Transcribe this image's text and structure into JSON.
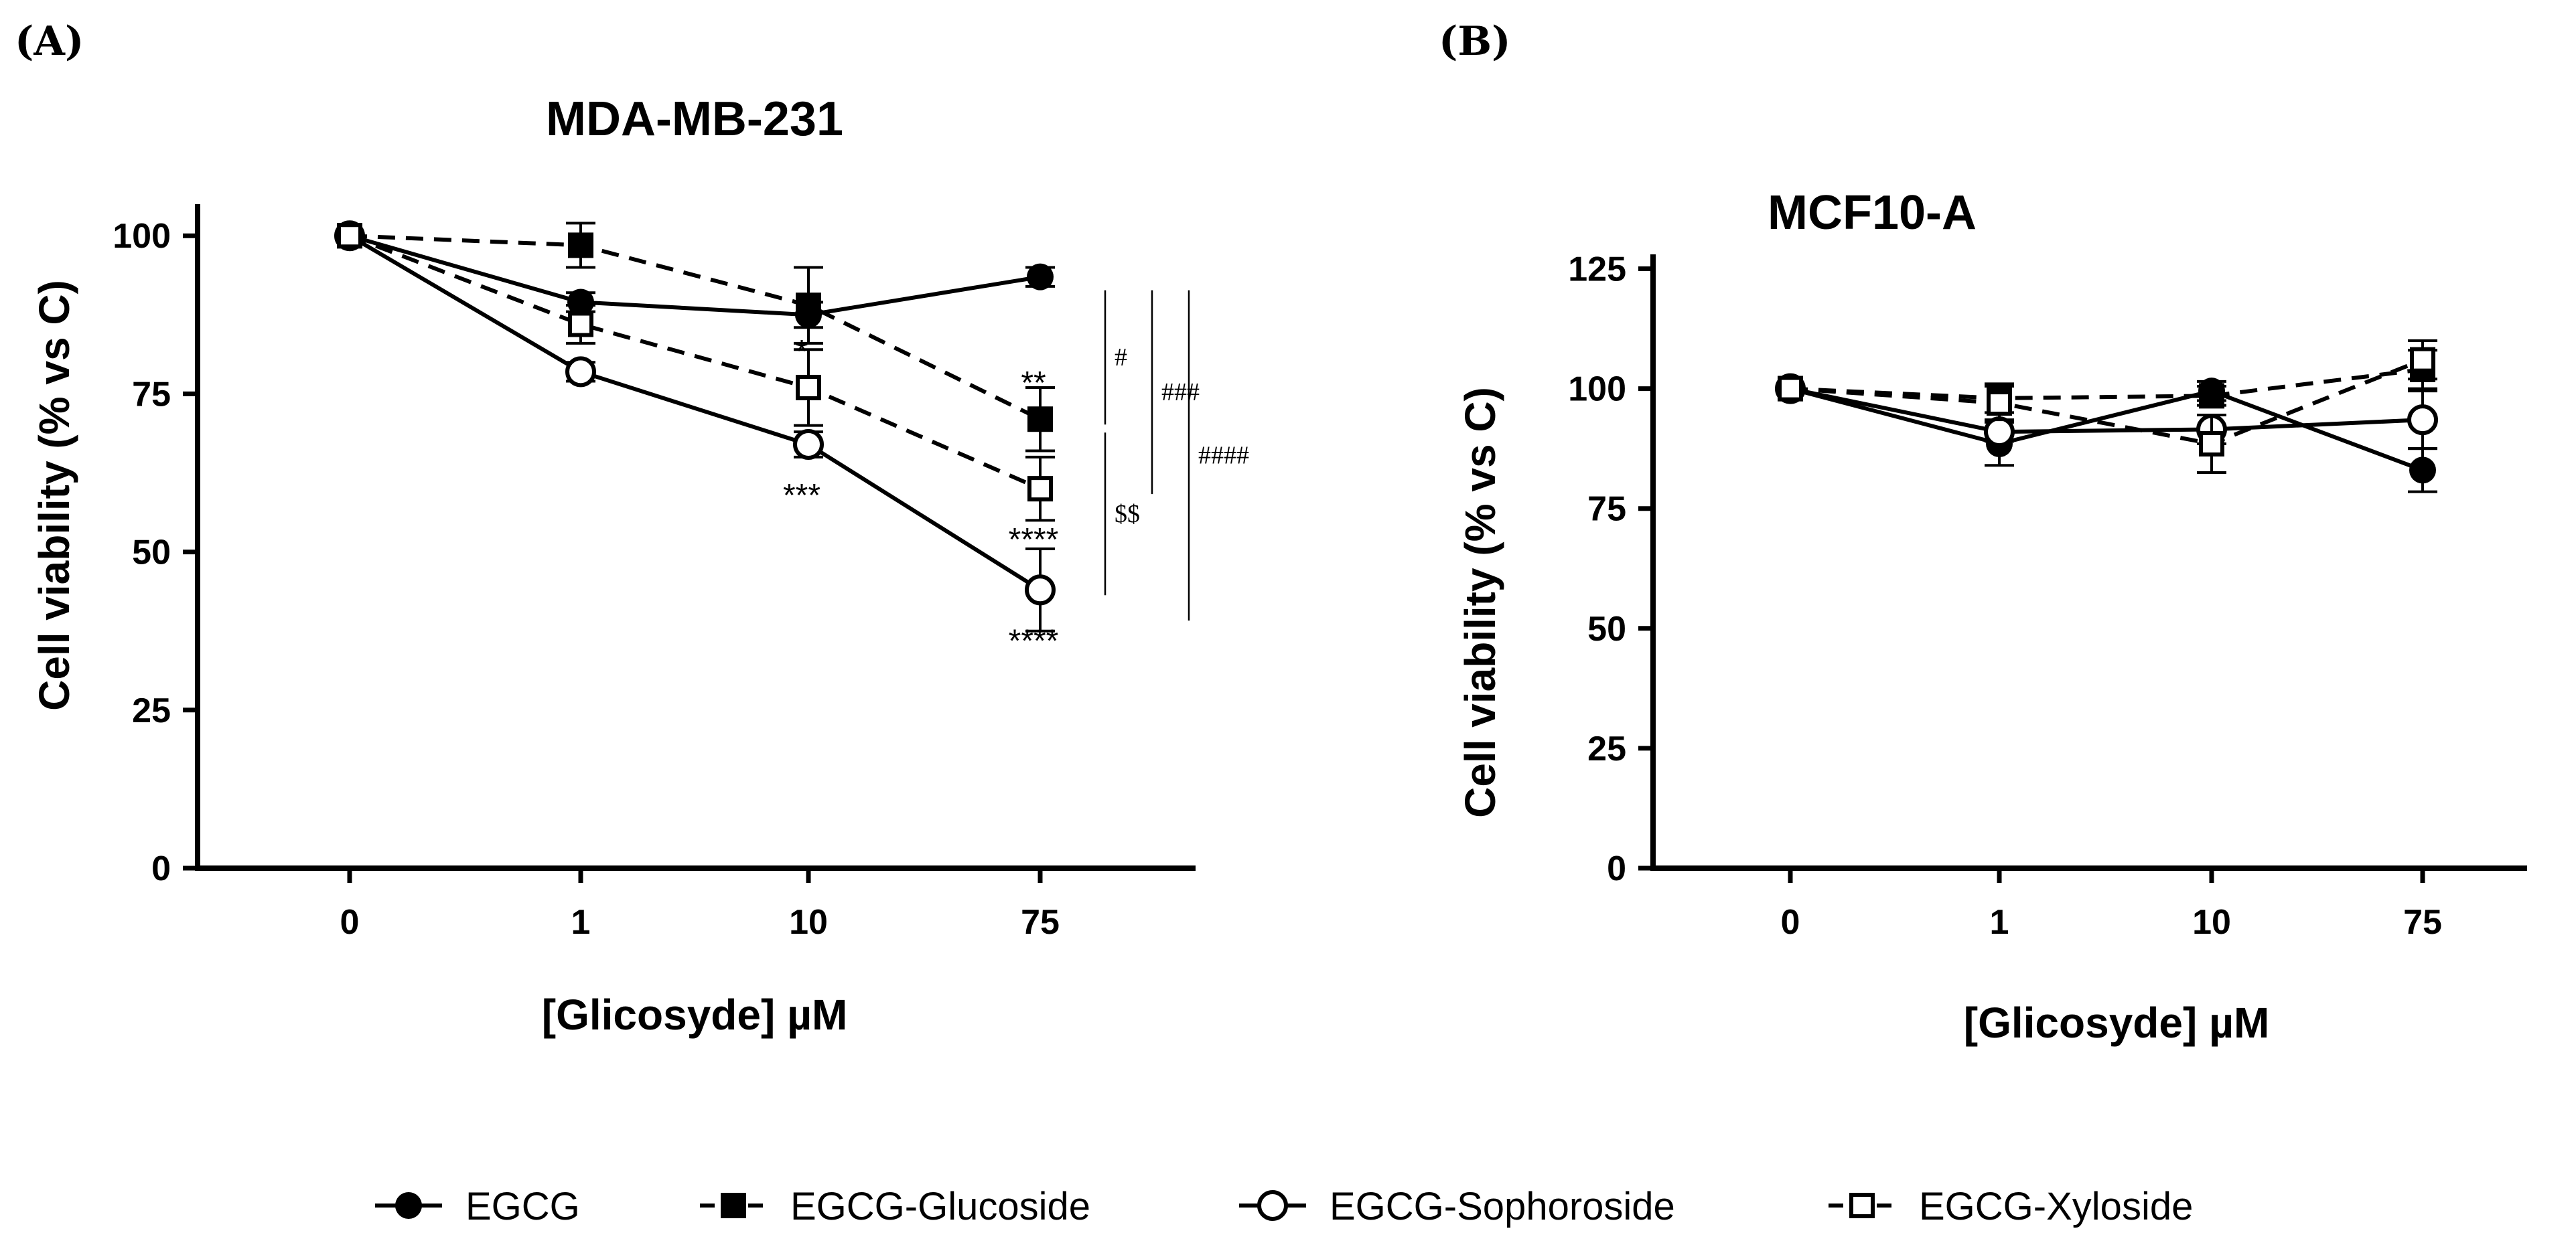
{
  "panels": {
    "a_label": "(A)",
    "b_label": "(B)"
  },
  "legend": [
    {
      "name": "EGCG",
      "marker": "filled-circle",
      "line": "solid"
    },
    {
      "name": "EGCG-Glucoside",
      "marker": "filled-square",
      "line": "dashed"
    },
    {
      "name": "EGCG-Sophoroside",
      "marker": "open-circle",
      "line": "solid"
    },
    {
      "name": "EGCG-Xyloside",
      "marker": "open-square",
      "line": "dashed"
    }
  ],
  "chart_data": [
    {
      "type": "line",
      "title": "MDA-MB-231",
      "xlabel": "[Glicosyde] µM",
      "ylabel": "Cell viability (% vs C)",
      "categories": [
        "0",
        "1",
        "10",
        "75"
      ],
      "ylim": [
        0,
        105
      ],
      "yticks": [
        0,
        25,
        50,
        75,
        100
      ],
      "series": [
        {
          "name": "EGCG",
          "values": [
            100,
            89.5,
            87.5,
            93.5
          ],
          "errors": [
            0,
            1.5,
            2,
            1.5
          ]
        },
        {
          "name": "EGCG-Glucoside",
          "values": [
            100,
            98.5,
            89,
            71
          ],
          "errors": [
            0,
            3.5,
            6,
            5
          ]
        },
        {
          "name": "EGCG-Sophoroside",
          "values": [
            100,
            78.5,
            67,
            44
          ],
          "errors": [
            0,
            1.5,
            2,
            6.5
          ]
        },
        {
          "name": "EGCG-Xyloside",
          "values": [
            100,
            86,
            76,
            60
          ],
          "errors": [
            0,
            3,
            6,
            5
          ]
        }
      ],
      "annotations": [
        {
          "category": "10",
          "series": "EGCG-Xyloside",
          "text": "*",
          "position": "above"
        },
        {
          "category": "10",
          "series": "EGCG-Sophoroside",
          "text": "***",
          "position": "below"
        },
        {
          "category": "75",
          "series": "EGCG-Glucoside",
          "text": "**",
          "position": "above"
        },
        {
          "category": "75",
          "series": "EGCG-Xyloside",
          "text": "****",
          "position": "below"
        },
        {
          "category": "75",
          "series": "EGCG-Sophoroside",
          "text": "****",
          "position": "below"
        }
      ],
      "brackets": [
        {
          "text": "#",
          "from": 93.5,
          "to": 71
        },
        {
          "text": "###",
          "from": 93.5,
          "to": 60
        },
        {
          "text": "$$",
          "from": 71,
          "to": 44
        },
        {
          "text": "####",
          "from": 93.5,
          "to": 40
        }
      ]
    },
    {
      "type": "line",
      "title": "MCF10-A",
      "xlabel": "[Glicosyde] µM",
      "ylabel": "Cell viability (% vs C)",
      "categories": [
        "0",
        "1",
        "10",
        "75"
      ],
      "ylim": [
        0,
        128
      ],
      "yticks": [
        0,
        25,
        50,
        75,
        100,
        125
      ],
      "series": [
        {
          "name": "EGCG",
          "values": [
            100,
            88.5,
            99.5,
            83
          ],
          "errors": [
            0,
            4.5,
            2,
            4.5
          ]
        },
        {
          "name": "EGCG-Glucoside",
          "values": [
            100,
            98,
            98.5,
            104
          ],
          "errors": [
            0,
            3,
            2,
            4
          ]
        },
        {
          "name": "EGCG-Sophoroside",
          "values": [
            100,
            91,
            91.5,
            93.5
          ],
          "errors": [
            0,
            2,
            3,
            6
          ]
        },
        {
          "name": "EGCG-Xyloside",
          "values": [
            100,
            97,
            88.5,
            106
          ],
          "errors": [
            0,
            3.5,
            6,
            4
          ]
        }
      ]
    }
  ]
}
